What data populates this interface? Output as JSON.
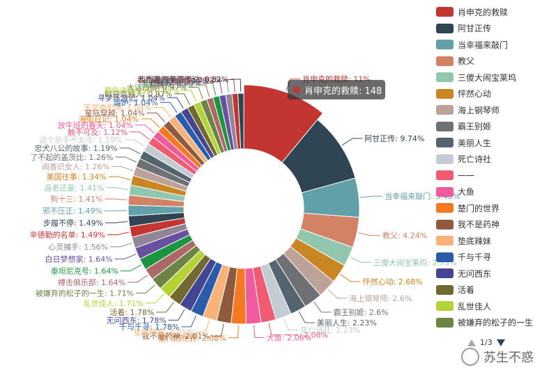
{
  "chart_data": {
    "type": "pie",
    "series": [
      {
        "name": "肖申克的救赎",
        "label": "肖申克的救赎: 11%",
        "color": "#c23531"
      },
      {
        "name": "阿甘正传",
        "label": "阿甘正传: 9.74%",
        "color": "#2f4554"
      },
      {
        "name": "当幸福来敲门",
        "label": "当幸福来敲门: 5.48%",
        "color": "#61a0a8"
      },
      {
        "name": "教父",
        "label": "教父: 4.24%",
        "color": "#d48265"
      },
      {
        "name": "三傻大闹宝莱坞",
        "label": "三傻大闹宝莱坞: 2.75%",
        "color": "#91c7ae"
      },
      {
        "name": "怦然心动",
        "label": "怦然心动: 2.68%",
        "color": "#ca8622"
      },
      {
        "name": "海上钢琴师",
        "label": "海上钢琴师: 2.6%",
        "color": "#bda29a"
      },
      {
        "name": "霸王别姬",
        "label": "霸王别姬: 2.6%",
        "color": "#6e7074"
      },
      {
        "name": "美丽人生",
        "label": "美丽人生: 2.23%",
        "color": "#546570"
      },
      {
        "name": "死亡诗社",
        "label": "死亡诗社: 2.23%",
        "color": "#c4ccd3"
      },
      {
        "name": "一一",
        "label": "一一: 2.08%",
        "color": "#f05b72"
      },
      {
        "name": "大鱼",
        "label": "大鱼: 2.08%",
        "color": "#ef5b9c"
      },
      {
        "name": "楚门的世界",
        "label": "楚门的世界: 2.08%",
        "color": "#f47920"
      },
      {
        "name": "我不是药神",
        "label": "我不是药神: 2.01%",
        "color": "#905a3d"
      },
      {
        "name": "垫底辣妹",
        "label": "垫底辣妹: 2.01%",
        "color": "#fab27b"
      },
      {
        "name": "千与千寻",
        "label": "千与千寻: 1.78%",
        "color": "#2a5caa"
      },
      {
        "name": "无问西东",
        "label": "无问西东: 1.78%",
        "color": "#444693"
      },
      {
        "name": "活着",
        "label": "活着: 1.78%",
        "color": "#726930"
      },
      {
        "name": "乱世佳人",
        "label": "乱世佳人: 1.71%",
        "color": "#b2d235"
      },
      {
        "name": "被嫌弃的松子的一生",
        "label": "被嫌弃的松子的一生: 1.71%",
        "color": "#6d8346"
      },
      {
        "name": "搏击俱乐部",
        "label": "搏击俱乐部: 1.64%",
        "color": "#ac6767"
      },
      {
        "name": "泰坦尼克号",
        "label": "泰坦尼克号: 1.64%",
        "color": "#1d953f"
      },
      {
        "name": "白日梦想家",
        "label": "白日梦想家: 1.64%",
        "color": "#6950a1"
      },
      {
        "name": "心灵捕手",
        "label": "心灵捕手: 1.56%",
        "color": "#918597"
      },
      {
        "name": "辛德勒的名单",
        "label": "辛德勒的名单: 1.49%",
        "color": "#c23531"
      },
      {
        "name": "步履不停",
        "label": "步履不停: 1.49%",
        "color": "#2f4554"
      },
      {
        "name": "邪不压正",
        "label": "邪不压正: 1.49%",
        "color": "#61a0a8"
      },
      {
        "name": "狗十三",
        "label": "狗十三: 1.41%",
        "color": "#d48265"
      },
      {
        "name": "返老还童",
        "label": "返老还童: 1.41%",
        "color": "#91c7ae"
      },
      {
        "name": "美国往事",
        "label": "美国往事: 1.34%",
        "color": "#ca8622"
      },
      {
        "name": "闻香识女人",
        "label": "闻香识女人: 1.26%",
        "color": "#bda29a"
      },
      {
        "name": "了不起的盖茨比",
        "label": "了不起的盖茨比: 1.26%",
        "color": "#6e7074"
      },
      {
        "name": "忠犬八公的故事",
        "label": "忠犬八公的故事: 1.19%",
        "color": "#546570"
      },
      {
        "name": "这个杀手不太冷",
        "label": "这个杀手不太冷: 1.19%",
        "color": "#c4ccd3"
      },
      {
        "name": "触不可及",
        "label": "触不可及: 1.12%",
        "color": "#f05b72"
      },
      {
        "name": "放牛班的春天",
        "label": "放牛班的春天: 1.04%",
        "color": "#ef5b9c"
      },
      {
        "name": "海街日记",
        "label": "海街日记: 1.04%",
        "color": "#f47920"
      },
      {
        "name": "星际穿越",
        "label": "星际穿越: 1.04%",
        "color": "#905a3d"
      },
      {
        "name": "天堂电影院",
        "label": "天堂电影院: 1.04%",
        "color": "#fab27b"
      },
      {
        "name": "熔炉",
        "label": "熔炉: 1.04%",
        "color": "#2a5caa"
      },
      {
        "name": "寻梦环游记",
        "label": "寻梦环游记: 1.04%",
        "color": "#444693"
      },
      {
        "name": "时空恋旅人",
        "label": "时空恋旅人: 0.97%",
        "color": "#726930"
      },
      {
        "name": "悲伤逆流成河",
        "label": "悲伤逆流成河: 0.97%",
        "color": "#b2d235"
      },
      {
        "name": "大话西游",
        "label": "大话西游: 0.97%",
        "color": "#6d8346"
      },
      {
        "name": "超脱",
        "label": "超脱: 0.89%",
        "color": "#ac6767"
      },
      {
        "name": "东邪西毒",
        "label": "东邪西毒: 0.89%",
        "color": "#1d953f"
      },
      {
        "name": "小偷家族",
        "label": "小偷家族: 0.89%",
        "color": "#6950a1"
      },
      {
        "name": "何以为家",
        "label": "何以为家: 0.89%",
        "color": "#918597"
      },
      {
        "name": "本杰明·巴顿奇事",
        "label": "本杰明·巴顿奇事: 0.82%",
        "color": "#c23531"
      },
      {
        "name": "西西里的美丽传说",
        "label": "西西里的美丽传说: 0.82%",
        "color": "#2f4554"
      }
    ],
    "values": [
      11,
      9.74,
      5.48,
      4.24,
      2.75,
      2.68,
      2.6,
      2.6,
      2.23,
      2.23,
      2.08,
      2.08,
      2.08,
      2.01,
      2.01,
      1.78,
      1.78,
      1.78,
      1.71,
      1.71,
      1.64,
      1.64,
      1.64,
      1.56,
      1.49,
      1.49,
      1.49,
      1.41,
      1.41,
      1.34,
      1.26,
      1.26,
      1.19,
      1.19,
      1.12,
      1.04,
      1.04,
      1.04,
      1.04,
      1.04,
      1.04,
      0.97,
      0.97,
      0.97,
      0.89,
      0.89,
      0.89,
      0.89,
      0.82,
      0.82
    ],
    "tooltip": {
      "text": "肖申克的救赎: 148"
    },
    "legend_visible": [
      "肖申克的救赎",
      "阿甘正传",
      "当幸福来敲门",
      "教父",
      "三傻大闹宝莱坞",
      "怦然心动",
      "海上钢琴师",
      "霸王别姬",
      "美丽人生",
      "死亡诗社",
      "一一",
      "大鱼",
      "楚门的世界",
      "我不是药神",
      "垫底辣妹",
      "千与千寻",
      "无问西东",
      "活着",
      "乱世佳人",
      "被嫌弃的松子的一生"
    ]
  },
  "legend": {
    "page": "1/3"
  },
  "watermark": {
    "text": "苏生不惑"
  }
}
